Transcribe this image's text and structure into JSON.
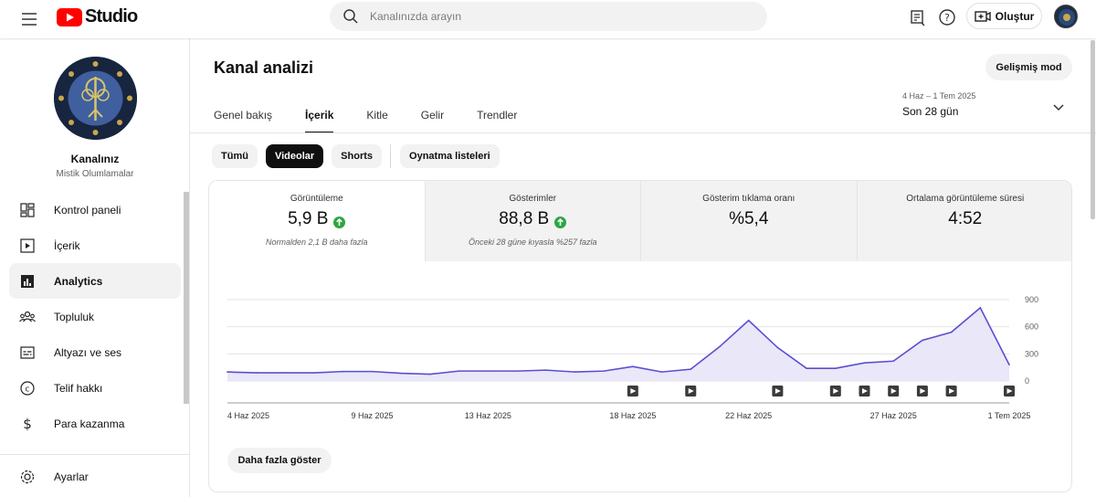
{
  "header": {
    "logo_text": "Studio",
    "search_placeholder": "Kanalınızda arayın",
    "create_label": "Oluştur"
  },
  "sidebar": {
    "channel_name": "Kanalınız",
    "channel_sub": "Mistik Olumlamalar",
    "items": [
      {
        "label": "Kontrol paneli",
        "icon": "dashboard-icon"
      },
      {
        "label": "İçerik",
        "icon": "content-icon"
      },
      {
        "label": "Analytics",
        "icon": "analytics-icon",
        "active": true
      },
      {
        "label": "Topluluk",
        "icon": "community-icon"
      },
      {
        "label": "Altyazı ve ses",
        "icon": "subtitles-icon"
      },
      {
        "label": "Telif hakkı",
        "icon": "copyright-icon"
      },
      {
        "label": "Para kazanma",
        "icon": "dollar-icon"
      }
    ],
    "settings_label": "Ayarlar"
  },
  "main": {
    "title": "Kanal analizi",
    "advanced_mode": "Gelişmiş mod",
    "tabs": [
      "Genel bakış",
      "İçerik",
      "Kitle",
      "Gelir",
      "Trendler"
    ],
    "active_tab": "İçerik",
    "date_range": {
      "small": "4 Haz – 1 Tem 2025",
      "big": "Son 28 gün"
    },
    "chips": [
      "Tümü",
      "Videolar",
      "Shorts",
      "Oynatma listeleri"
    ],
    "active_chip": "Videolar",
    "metrics": [
      {
        "label": "Görüntüleme",
        "value": "5,9 B",
        "up": true,
        "note": "Normalden 2,1 B daha fazla"
      },
      {
        "label": "Gösterimler",
        "value": "88,8 B",
        "up": true,
        "note": "Önceki 28 güne kıyasla %257 fazla"
      },
      {
        "label": "Gösterim tıklama oranı",
        "value": "%5,4",
        "up": false,
        "note": ""
      },
      {
        "label": "Ortalama görüntüleme süresi",
        "value": "4:52",
        "up": false,
        "note": ""
      }
    ],
    "more_button": "Daha fazla göster"
  },
  "colors": {
    "accent": "#5a4fcf",
    "fill": "#e9e7f8",
    "green": "#2ba640",
    "brand_red": "#ff0000"
  },
  "chart_data": {
    "type": "area",
    "x": [
      "4 Haz 2025",
      "5 Haz 2025",
      "6 Haz 2025",
      "7 Haz 2025",
      "8 Haz 2025",
      "9 Haz 2025",
      "10 Haz 2025",
      "11 Haz 2025",
      "12 Haz 2025",
      "13 Haz 2025",
      "14 Haz 2025",
      "15 Haz 2025",
      "16 Haz 2025",
      "17 Haz 2025",
      "18 Haz 2025",
      "19 Haz 2025",
      "20 Haz 2025",
      "21 Haz 2025",
      "22 Haz 2025",
      "23 Haz 2025",
      "24 Haz 2025",
      "25 Haz 2025",
      "26 Haz 2025",
      "27 Haz 2025",
      "28 Haz 2025",
      "29 Haz 2025",
      "30 Haz 2025",
      "1 Tem 2025"
    ],
    "values": [
      100,
      90,
      90,
      90,
      105,
      105,
      85,
      75,
      110,
      110,
      110,
      120,
      100,
      110,
      160,
      100,
      130,
      380,
      670,
      370,
      140,
      140,
      200,
      220,
      450,
      540,
      810,
      180
    ],
    "x_tick_labels": [
      "4 Haz 2025",
      "9 Haz 2025",
      "13 Haz 2025",
      "18 Haz 2025",
      "22 Haz 2025",
      "27 Haz 2025",
      "1 Tem 2025"
    ],
    "y_ticks": [
      0,
      300,
      600,
      900
    ],
    "ylim": [
      0,
      900
    ],
    "video_markers": [
      "18 Haz 2025",
      "20 Haz 2025",
      "23 Haz 2025",
      "25 Haz 2025",
      "26 Haz 2025",
      "27 Haz 2025",
      "28 Haz 2025",
      "29 Haz 2025",
      "1 Tem 2025"
    ],
    "grid": true,
    "xlabel": "",
    "ylabel": "",
    "title": ""
  }
}
